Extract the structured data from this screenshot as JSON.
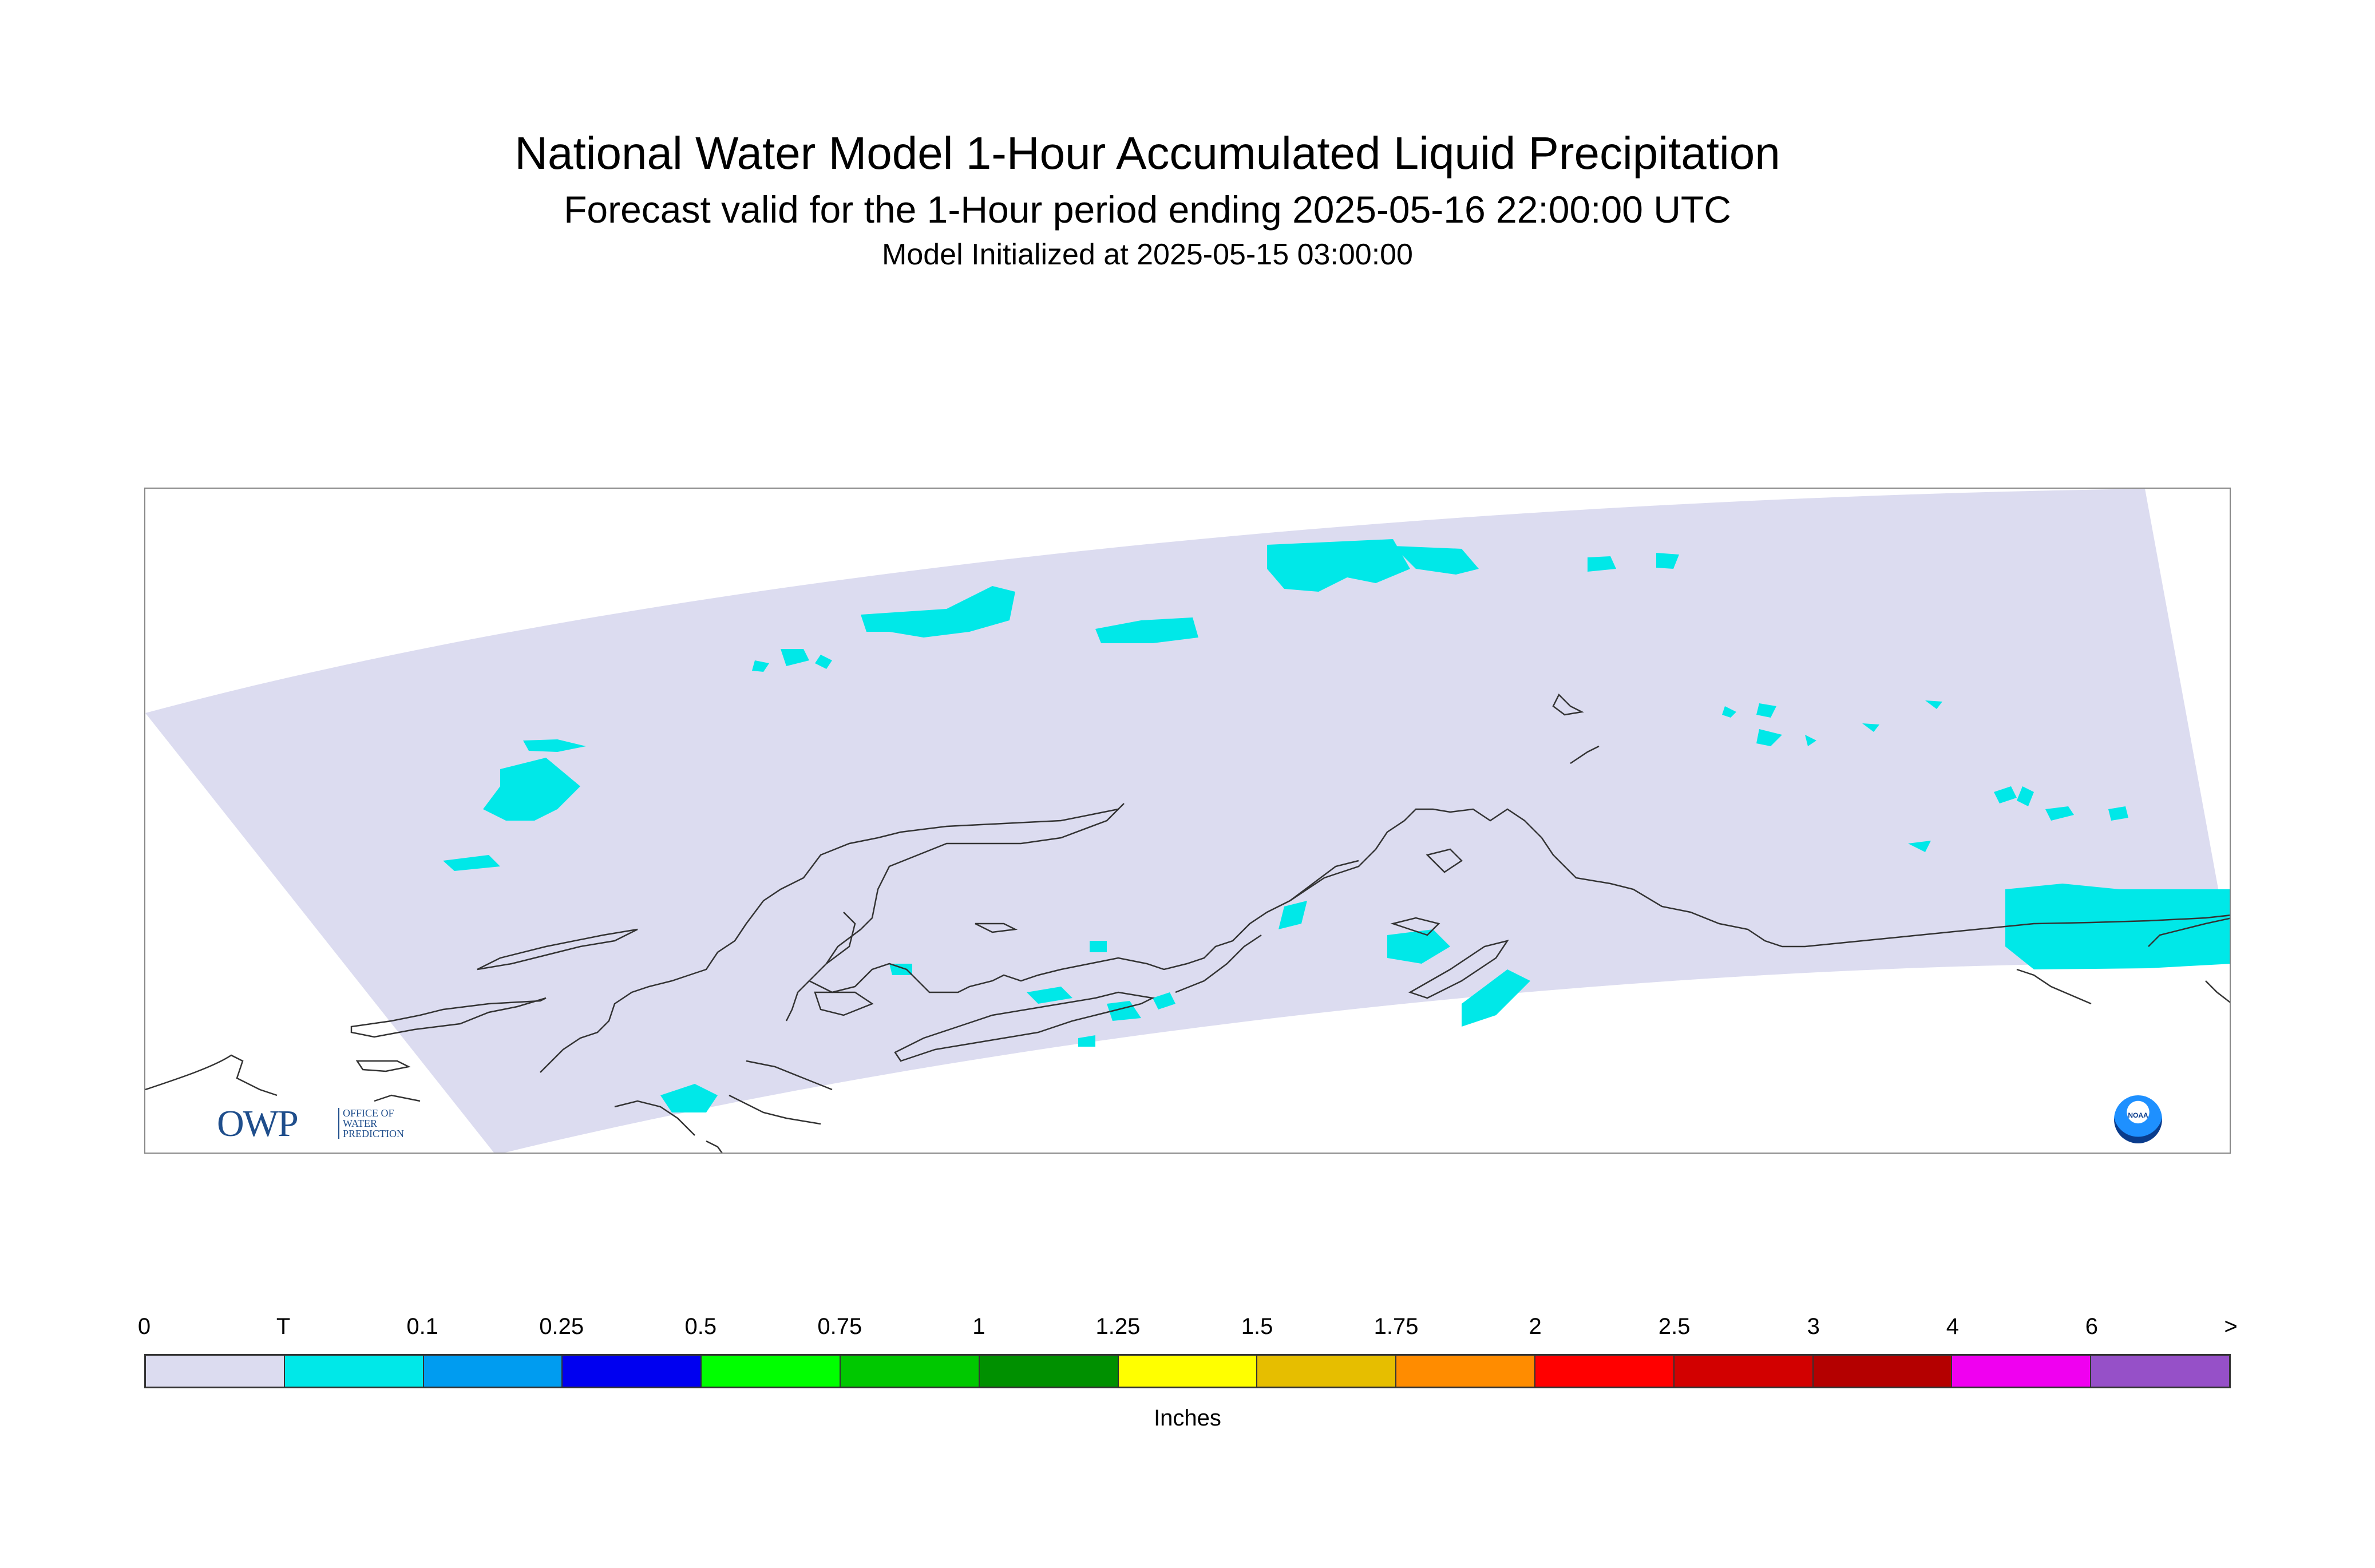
{
  "title": "National Water Model 1-Hour Accumulated Liquid Precipitation",
  "subtitle": "Forecast valid for the 1-Hour period ending 2025-05-16 22:00:00 UTC",
  "init_line": "Model Initialized at 2025-05-15 03:00:00",
  "logos": {
    "owp_big": "OWP",
    "owp_small": "OFFICE OF WATER PREDICTION",
    "noaa": "NOAA"
  },
  "legend": {
    "units": "Inches",
    "tick_labels": [
      "0",
      "T",
      "0.1",
      "0.25",
      "0.5",
      "0.75",
      "1",
      "1.25",
      "1.5",
      "1.75",
      "2",
      "2.5",
      "3",
      "4",
      "6",
      ">"
    ],
    "colors": [
      "#dcdcf0",
      "#00e8e8",
      "#009cf0",
      "#0000f0",
      "#00ff00",
      "#00c800",
      "#009000",
      "#ffff00",
      "#e6be00",
      "#ff8c00",
      "#ff0000",
      "#d20000",
      "#b40000",
      "#f000f0",
      "#9650c8"
    ]
  },
  "colors": {
    "domain_fill": "#dcdcf0",
    "trace_fill": "#00e8e8",
    "coastline": "#333333"
  }
}
